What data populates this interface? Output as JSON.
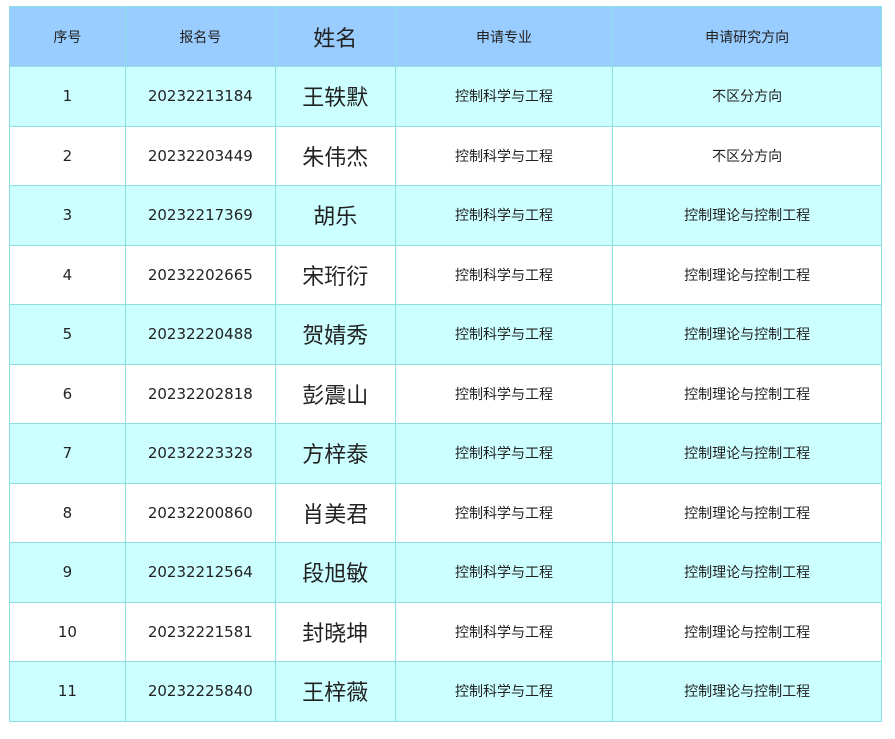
{
  "headers": [
    "序号",
    "报名号",
    "姓名",
    "申请专业",
    "申请研究方向"
  ],
  "rows": [
    [
      "1",
      "20232213184",
      "王轶默",
      "控制科学与工程",
      "不区分方向"
    ],
    [
      "2",
      "20232203449",
      "朱伟杰",
      "控制科学与工程",
      "不区分方向"
    ],
    [
      "3",
      "20232217369",
      "胡乐",
      "控制科学与工程",
      "控制理论与控制工程"
    ],
    [
      "4",
      "20232202665",
      "宋珩衍",
      "控制科学与工程",
      "控制理论与控制工程"
    ],
    [
      "5",
      "20232220488",
      "贺婧秀",
      "控制科学与工程",
      "控制理论与控制工程"
    ],
    [
      "6",
      "20232202818",
      "彭震山",
      "控制科学与工程",
      "控制理论与控制工程"
    ],
    [
      "7",
      "20232223328",
      "方梓泰",
      "控制科学与工程",
      "控制理论与控制工程"
    ],
    [
      "8",
      "20232200860",
      "肖美君",
      "控制科学与工程",
      "控制理论与控制工程"
    ],
    [
      "9",
      "20232212564",
      "段旭敏",
      "控制科学与工程",
      "控制理论与控制工程"
    ],
    [
      "10",
      "20232221581",
      "封晓坤",
      "控制科学与工程",
      "控制理论与控制工程"
    ],
    [
      "11",
      "20232225840",
      "王梓薇",
      "控制科学与工程",
      "控制理论与控制工程"
    ]
  ],
  "colors": {
    "header_bg": "#99ccff",
    "stripe_bg": "#ccffff",
    "border": "#8ee0e0"
  }
}
